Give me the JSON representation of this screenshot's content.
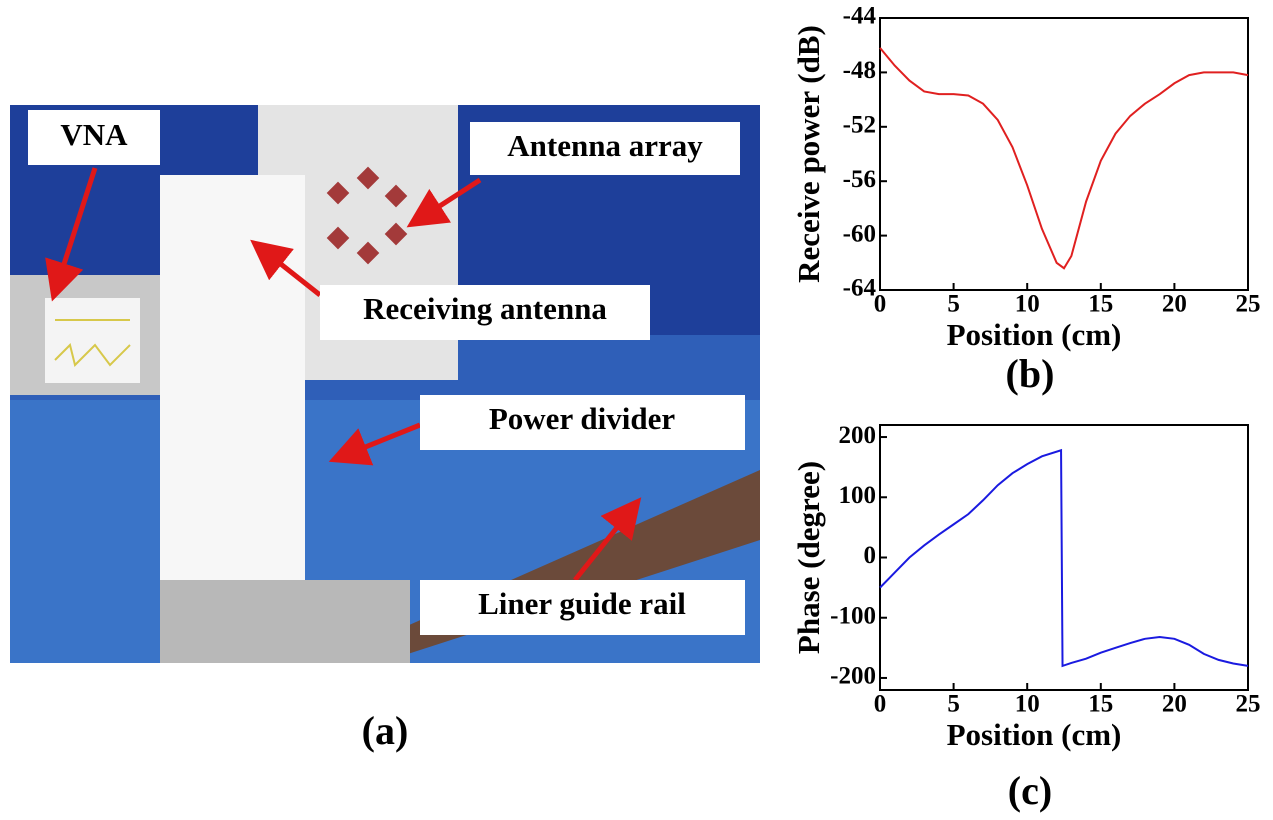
{
  "photo": {
    "labels": [
      "VNA",
      "Antenna array",
      "Receiving antenna",
      "Power divider",
      "Liner guide rail"
    ],
    "caption": "(a)"
  },
  "chart_data": [
    {
      "type": "line",
      "caption": "(b)",
      "x_label": "Position (cm)",
      "y_label": "Receive power (dB)",
      "x": [
        0,
        1,
        2,
        3,
        4,
        5,
        6,
        7,
        8,
        9,
        10,
        11,
        12,
        12.5,
        13,
        14,
        15,
        16,
        17,
        18,
        19,
        20,
        21,
        22,
        23,
        24,
        25
      ],
      "values": [
        -46.2,
        -47.5,
        -48.6,
        -49.4,
        -49.6,
        -49.6,
        -49.7,
        -50.3,
        -51.5,
        -53.5,
        -56.3,
        -59.5,
        -62.0,
        -62.4,
        -61.5,
        -57.5,
        -54.5,
        -52.5,
        -51.2,
        -50.3,
        -49.6,
        -48.8,
        -48.2,
        -48.0,
        -48.0,
        -48.0,
        -48.2
      ],
      "color": "#e02020",
      "xlim": [
        0,
        25
      ],
      "xticks": [
        0,
        5,
        10,
        15,
        20,
        25
      ],
      "ylim": [
        -64,
        -44
      ],
      "yticks": [
        -64,
        -60,
        -56,
        -52,
        -48,
        -44
      ]
    },
    {
      "type": "line",
      "caption": "(c)",
      "x_label": "Position (cm)",
      "y_label": "Phase (degree)",
      "x": [
        0,
        1,
        2,
        3,
        4,
        5,
        6,
        7,
        8,
        9,
        10,
        11,
        12.3,
        12.4,
        13,
        14,
        15,
        16,
        17,
        18,
        19,
        20,
        21,
        22,
        23,
        24,
        25
      ],
      "values": [
        -50,
        -25,
        0,
        20,
        38,
        55,
        72,
        95,
        120,
        140,
        155,
        168,
        178,
        -180,
        -175,
        -168,
        -158,
        -150,
        -142,
        -135,
        -132,
        -135,
        -145,
        -160,
        -170,
        -176,
        -180
      ],
      "color": "#1a1ae0",
      "xlim": [
        0,
        25
      ],
      "xticks": [
        0,
        5,
        10,
        15,
        20,
        25
      ],
      "ylim": [
        -220,
        220
      ],
      "yticks": [
        -200,
        -100,
        0,
        100,
        200
      ]
    }
  ]
}
